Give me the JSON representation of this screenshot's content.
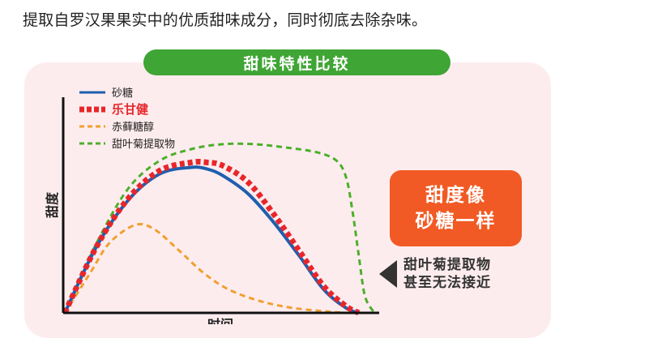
{
  "intro_text": "提取自罗汉果果实中的优质甜味成分，同时彻底去除杂味。",
  "panel": {
    "title": "甜味特性比较",
    "badge_line1": "甜度像",
    "badge_line2": "砂糖一样",
    "callout_line1": "甜叶菊提取物",
    "callout_line2": "甚至无法接近"
  },
  "colors": {
    "title_bg": "#3fa535",
    "panel_bg": "#fdecee",
    "badge_bg": "#f15a24"
  },
  "chart_data": {
    "type": "line",
    "xlabel": "时间",
    "ylabel": "甜度",
    "xlim": [
      0,
      100
    ],
    "ylim": [
      0,
      100
    ],
    "grid": false,
    "legend_position": "top-left",
    "series": [
      {
        "name": "砂糖",
        "color": "#1f5fae",
        "style": "solid",
        "x": [
          0,
          10,
          20,
          30,
          40,
          45,
          50,
          58,
          66,
          74,
          82,
          89,
          93
        ],
        "y": [
          0,
          40,
          68,
          84,
          88,
          87,
          83,
          72,
          55,
          35,
          14,
          3,
          0
        ]
      },
      {
        "name": "乐甘健",
        "color": "#e8262a",
        "style": "bold-dotted",
        "x": [
          0,
          10,
          20,
          30,
          40,
          45,
          50,
          58,
          66,
          74,
          82,
          89,
          93
        ],
        "y": [
          0,
          40,
          69,
          86,
          91,
          91,
          89,
          79,
          60,
          38,
          16,
          4,
          0
        ]
      },
      {
        "name": "赤藓糖醇",
        "color": "#f0a030",
        "style": "dashed",
        "x": [
          0,
          8,
          14,
          22,
          28,
          36,
          44,
          52,
          62,
          72,
          82,
          89,
          92
        ],
        "y": [
          0,
          24,
          42,
          53,
          51,
          38,
          24,
          14,
          7,
          3,
          1,
          0,
          0
        ]
      },
      {
        "name": "甜叶菊提取物",
        "color": "#4caf2a",
        "style": "dashed",
        "x": [
          0,
          10,
          20,
          30,
          40,
          50,
          60,
          70,
          80,
          86,
          89,
          91,
          93,
          95,
          98
        ],
        "y": [
          0,
          42,
          75,
          92,
          99,
          102,
          102,
          100,
          97,
          92,
          82,
          62,
          35,
          10,
          0
        ]
      }
    ]
  }
}
